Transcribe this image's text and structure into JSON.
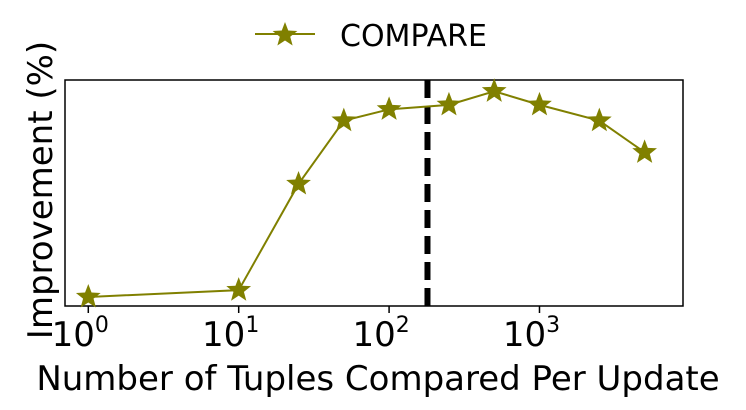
{
  "chart_data": {
    "type": "line",
    "title": "",
    "xlabel": "Number of Tuples Compared Per Update",
    "ylabel": "Improvement (%)",
    "xscale": "log",
    "xlim": [
      0.7,
      9000
    ],
    "ylim": [
      0,
      100
    ],
    "x_ticks": [
      {
        "base": "10",
        "exp": "0",
        "value": 1
      },
      {
        "base": "10",
        "exp": "1",
        "value": 10
      },
      {
        "base": "10",
        "exp": "2",
        "value": 100
      },
      {
        "base": "10",
        "exp": "3",
        "value": 1000
      }
    ],
    "y_tick_labels": "none",
    "grid": false,
    "legend": {
      "placement": "top-center",
      "entries": [
        "COMPARE"
      ]
    },
    "series": [
      {
        "name": "COMPARE",
        "color": "#808000",
        "marker": "star",
        "x": [
          1,
          10,
          25,
          50,
          100,
          250,
          500,
          1000,
          2500,
          5000
        ],
        "y": [
          4,
          7,
          54,
          82,
          87,
          89,
          95,
          89,
          82,
          68
        ]
      }
    ],
    "annotations": [
      {
        "type": "vertical-dashed-line",
        "x": 180,
        "color": "#000000"
      }
    ]
  }
}
